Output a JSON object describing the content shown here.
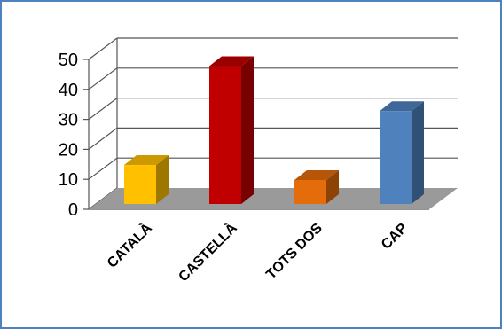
{
  "chart_data": {
    "type": "bar",
    "style": "3d-column",
    "title": "",
    "xlabel": "",
    "ylabel": "",
    "categories": [
      "CATALÀ",
      "CASTELLÀ",
      "TOTS DOS",
      "CAP"
    ],
    "values": [
      13,
      46,
      8,
      31
    ],
    "colors": [
      "#FFC000",
      "#C00000",
      "#E46C0A",
      "#4F81BD"
    ],
    "ylim": [
      0,
      50
    ],
    "yticks": [
      0,
      10,
      20,
      30,
      40,
      50
    ],
    "grid": true,
    "legend": "none",
    "border_color": "#4F81BD",
    "floor_color": "#9A9A9A"
  }
}
